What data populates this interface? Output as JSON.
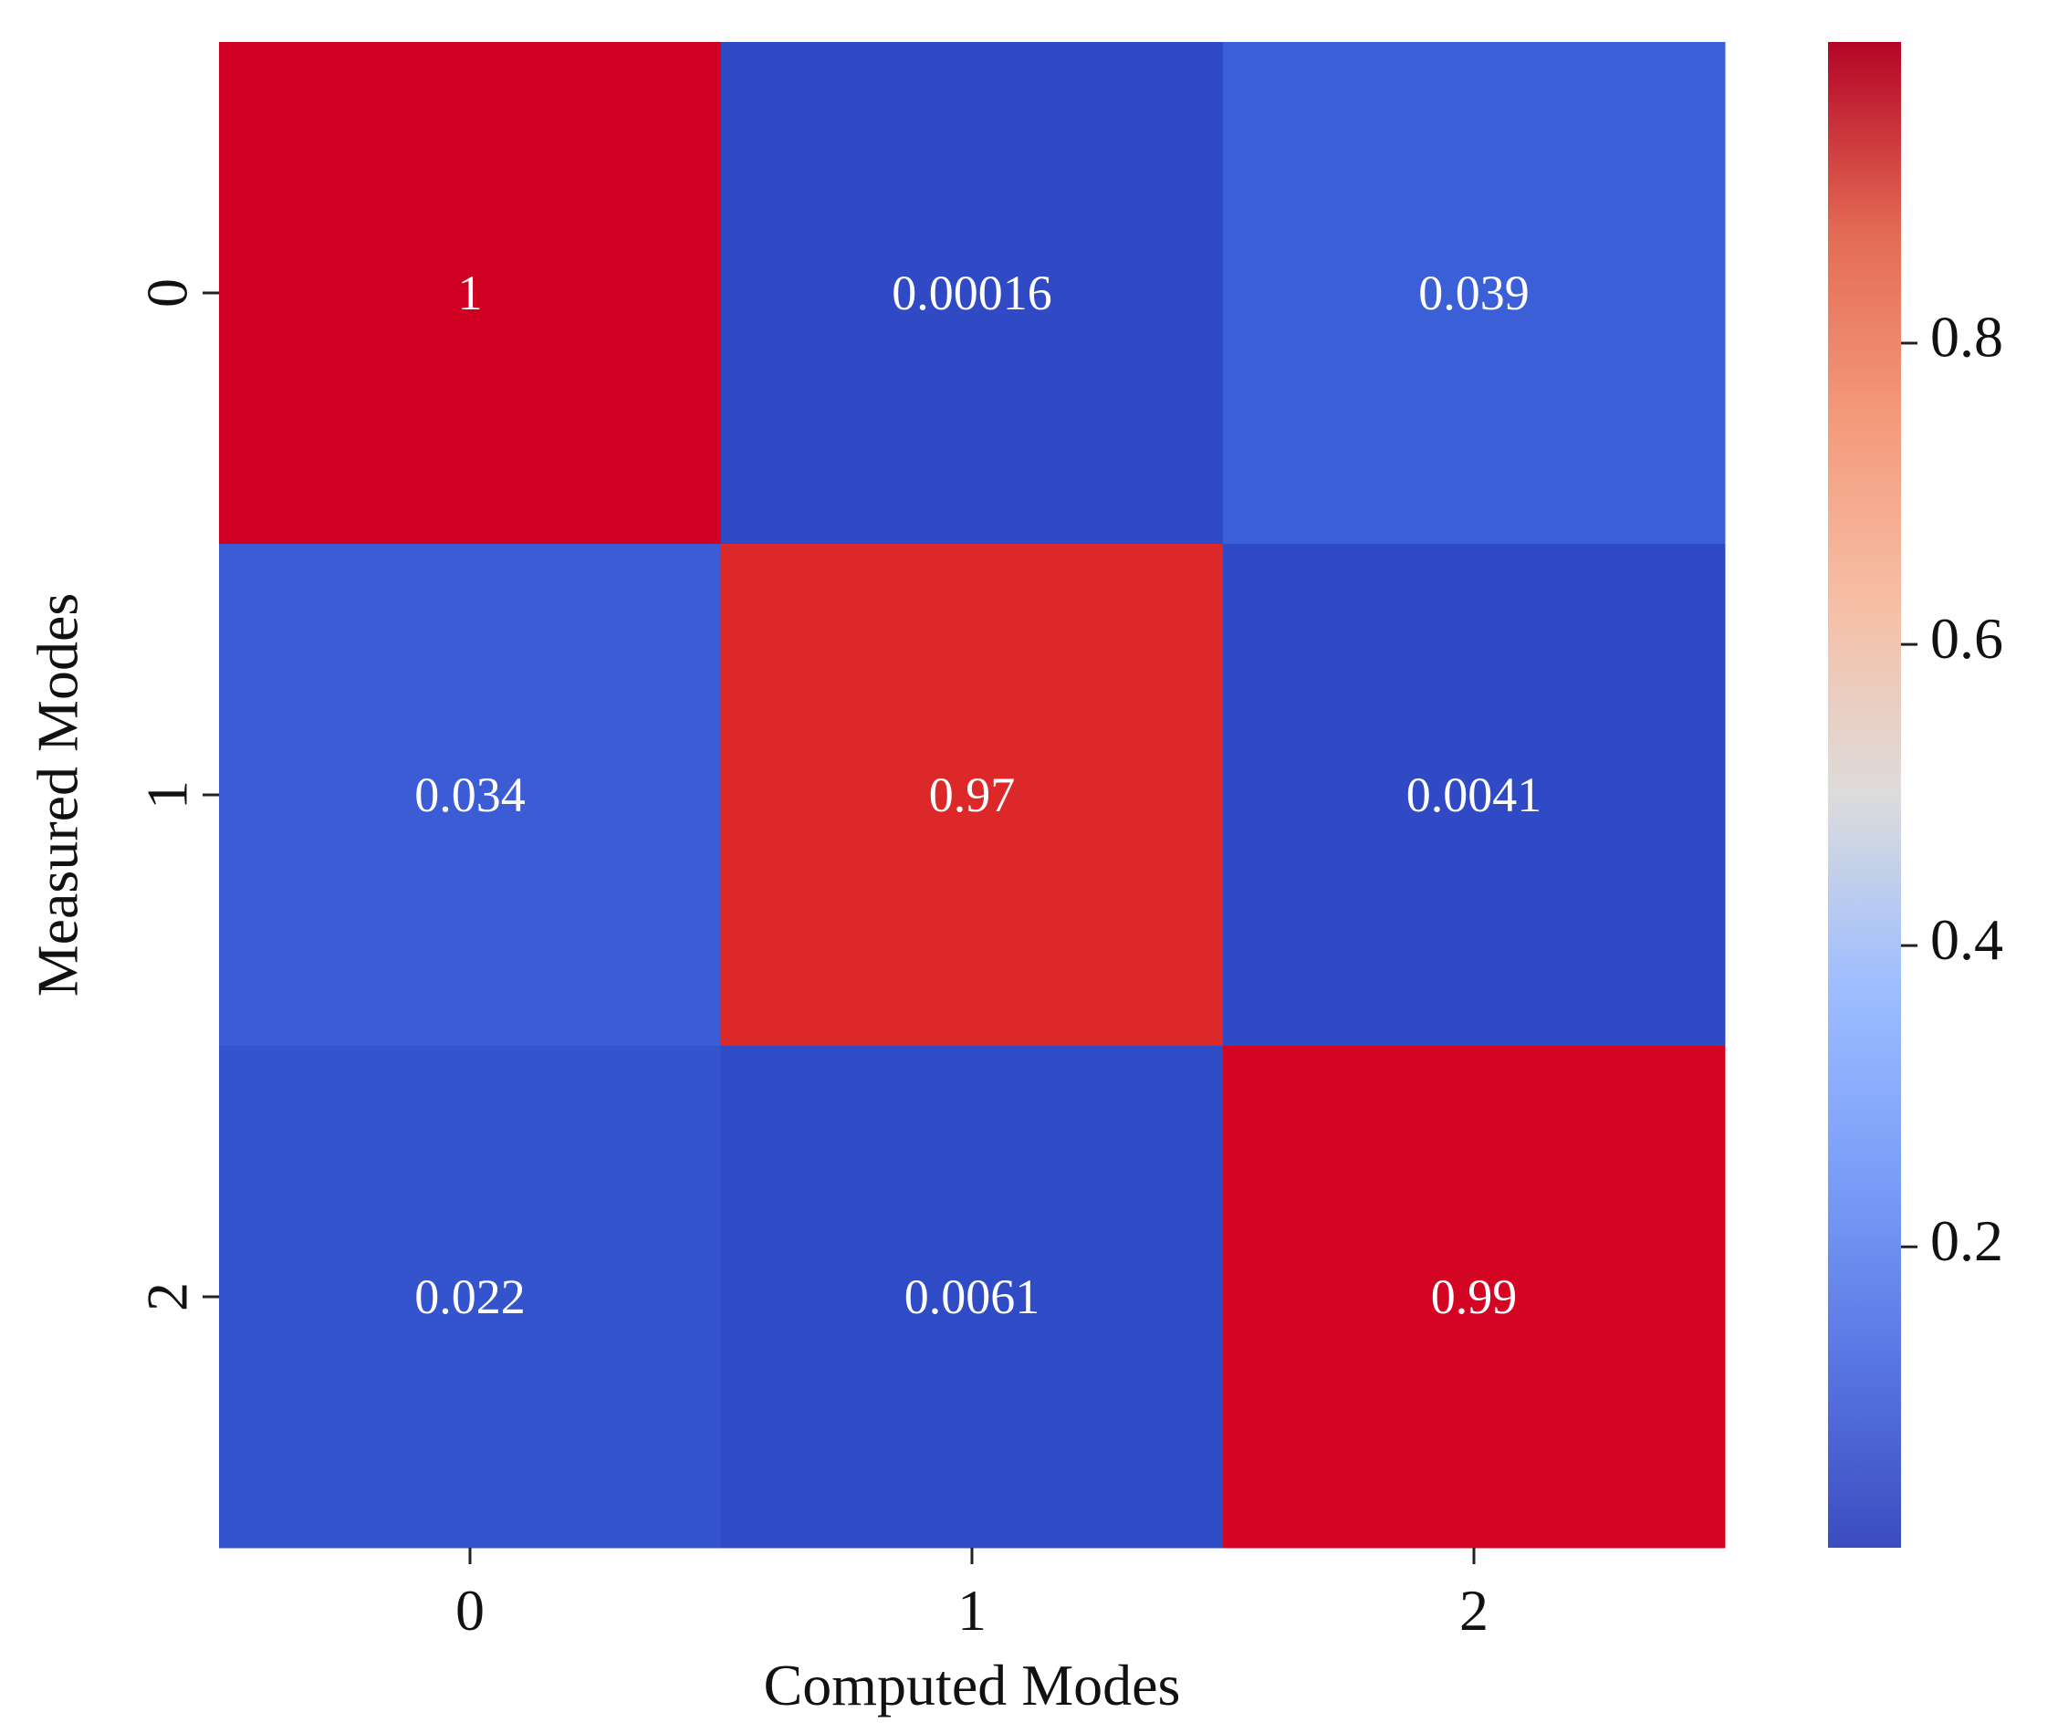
{
  "chart_data": {
    "type": "heatmap",
    "colormap": "coolwarm",
    "x_categories": [
      "0",
      "1",
      "2"
    ],
    "y_categories": [
      "0",
      "1",
      "2"
    ],
    "values": [
      [
        1.0,
        0.00016,
        0.039
      ],
      [
        0.034,
        0.97,
        0.0041
      ],
      [
        0.022,
        0.0061,
        0.99
      ]
    ],
    "annotations": [
      [
        "1",
        "0.00016",
        "0.039"
      ],
      [
        "0.034",
        "0.97",
        "0.0041"
      ],
      [
        "0.022",
        "0.0061",
        "0.99"
      ]
    ],
    "xlabel": "Computed Modes",
    "ylabel": "Measured Modes",
    "colorbar": {
      "vmin": 0.00016,
      "vmax": 1.0,
      "ticks": [
        0.2,
        0.4,
        0.6,
        0.8
      ],
      "tick_labels": [
        "0.2",
        "0.4",
        "0.6",
        "0.8"
      ]
    },
    "cell_colors": [
      [
        "#cf0022",
        "#2f4ac4",
        "#3a5fd6"
      ],
      [
        "#3b5cd4",
        "#dd2829",
        "#2f4ac4"
      ],
      [
        "#3454cd",
        "#2f4bc6",
        "#d40523"
      ]
    ]
  }
}
